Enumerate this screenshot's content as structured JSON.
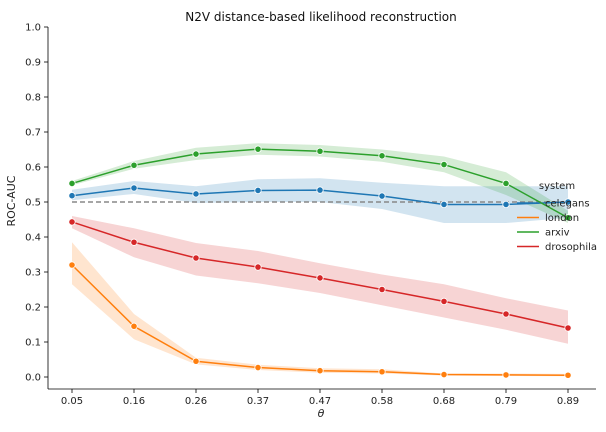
{
  "chart_data": {
    "type": "line",
    "title": "N2V distance-based likelihood reconstruction",
    "xlabel": "θ",
    "ylabel": "ROC-AUC",
    "categories": [
      "0.05",
      "0.16",
      "0.26",
      "0.37",
      "0.47",
      "0.58",
      "0.68",
      "0.79",
      "0.89"
    ],
    "ylim": [
      0,
      1.0
    ],
    "yticks": [
      "0.0",
      "0.1",
      "0.2",
      "0.3",
      "0.4",
      "0.5",
      "0.6",
      "0.7",
      "0.8",
      "0.9",
      "1.0"
    ],
    "grid": false,
    "legend": {
      "title": "system",
      "placement": "right"
    },
    "reference_line": {
      "y": 0.5,
      "style": "dashed",
      "color": "#888888"
    },
    "series": [
      {
        "name": "celegans",
        "color": "#1f77b4",
        "values": [
          0.518,
          0.54,
          0.523,
          0.533,
          0.534,
          0.517,
          0.493,
          0.493,
          0.5
        ],
        "lower": [
          0.505,
          0.523,
          0.497,
          0.5,
          0.5,
          0.48,
          0.44,
          0.44,
          0.455
        ],
        "upper": [
          0.535,
          0.56,
          0.545,
          0.565,
          0.568,
          0.555,
          0.545,
          0.545,
          0.545
        ]
      },
      {
        "name": "london",
        "color": "#ff7f0e",
        "values": [
          0.32,
          0.145,
          0.045,
          0.027,
          0.018,
          0.015,
          0.007,
          0.006,
          0.005
        ],
        "lower": [
          0.265,
          0.108,
          0.036,
          0.02,
          0.012,
          0.01,
          0.004,
          0.003,
          0.002
        ],
        "upper": [
          0.385,
          0.18,
          0.055,
          0.035,
          0.025,
          0.022,
          0.01,
          0.01,
          0.009
        ]
      },
      {
        "name": "arxiv",
        "color": "#2ca02c",
        "values": [
          0.553,
          0.605,
          0.637,
          0.651,
          0.645,
          0.632,
          0.607,
          0.553,
          0.455
        ],
        "lower": [
          0.548,
          0.595,
          0.62,
          0.635,
          0.63,
          0.615,
          0.585,
          0.52,
          0.44
        ],
        "upper": [
          0.56,
          0.617,
          0.655,
          0.668,
          0.663,
          0.65,
          0.63,
          0.585,
          0.475
        ]
      },
      {
        "name": "drosophila",
        "color": "#d62728",
        "values": [
          0.443,
          0.385,
          0.34,
          0.314,
          0.283,
          0.25,
          0.216,
          0.18,
          0.14
        ],
        "lower": [
          0.425,
          0.342,
          0.29,
          0.268,
          0.24,
          0.205,
          0.17,
          0.135,
          0.095
        ],
        "upper": [
          0.46,
          0.425,
          0.383,
          0.36,
          0.325,
          0.293,
          0.265,
          0.225,
          0.19
        ]
      }
    ]
  }
}
